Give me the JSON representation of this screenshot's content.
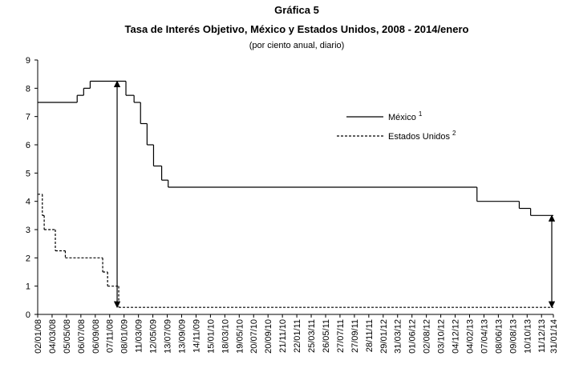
{
  "chart_data": {
    "type": "step",
    "title": "Gráfica 5",
    "subtitle": "Tasa de Interés Objetivo, México y Estados Unidos, 2008 - 2014/enero",
    "note": "(por ciento anual, diario)",
    "xlim": [
      "02/01/08",
      "31/01/14"
    ],
    "xticks": [
      "02/01/08",
      "04/03/08",
      "05/05/08",
      "06/07/08",
      "06/09/08",
      "07/11/08",
      "08/01/09",
      "11/03/09",
      "12/05/09",
      "13/07/09",
      "13/09/09",
      "14/11/09",
      "15/01/10",
      "18/03/10",
      "19/05/10",
      "20/07/10",
      "20/09/10",
      "21/11/10",
      "22/01/11",
      "25/03/11",
      "26/05/11",
      "27/07/11",
      "27/09/11",
      "28/11/11",
      "29/01/12",
      "31/03/12",
      "01/06/12",
      "02/08/12",
      "03/10/12",
      "04/12/12",
      "04/02/13",
      "07/04/13",
      "08/06/13",
      "09/08/13",
      "10/10/13",
      "11/12/13",
      "31/01/14"
    ],
    "ylim": [
      0,
      9
    ],
    "yticks": [
      0,
      1,
      2,
      3,
      4,
      5,
      6,
      7,
      8,
      9
    ],
    "series": [
      {
        "name": "México",
        "sup": "1",
        "color": "#000000",
        "style": "solid",
        "x": [
          "02/01/08",
          "20/06/08",
          "18/07/08",
          "15/08/08",
          "16/01/09",
          "20/02/09",
          "20/03/09",
          "17/04/09",
          "15/05/09",
          "19/06/09",
          "17/07/09",
          "08/03/13",
          "06/09/13",
          "25/10/13"
        ],
        "values": [
          7.5,
          7.75,
          8.0,
          8.25,
          7.75,
          7.5,
          6.75,
          6.0,
          5.25,
          4.75,
          4.5,
          4.0,
          3.75,
          3.5
        ]
      },
      {
        "name": "Estados Unidos",
        "sup": "2",
        "color": "#000000",
        "style": "dashed",
        "x": [
          "02/01/08",
          "22/01/08",
          "30/01/08",
          "18/03/08",
          "30/04/08",
          "08/10/08",
          "29/10/08",
          "16/12/08"
        ],
        "values": [
          4.25,
          3.5,
          3.0,
          2.25,
          2.0,
          1.5,
          1.0,
          0.25
        ]
      }
    ]
  }
}
